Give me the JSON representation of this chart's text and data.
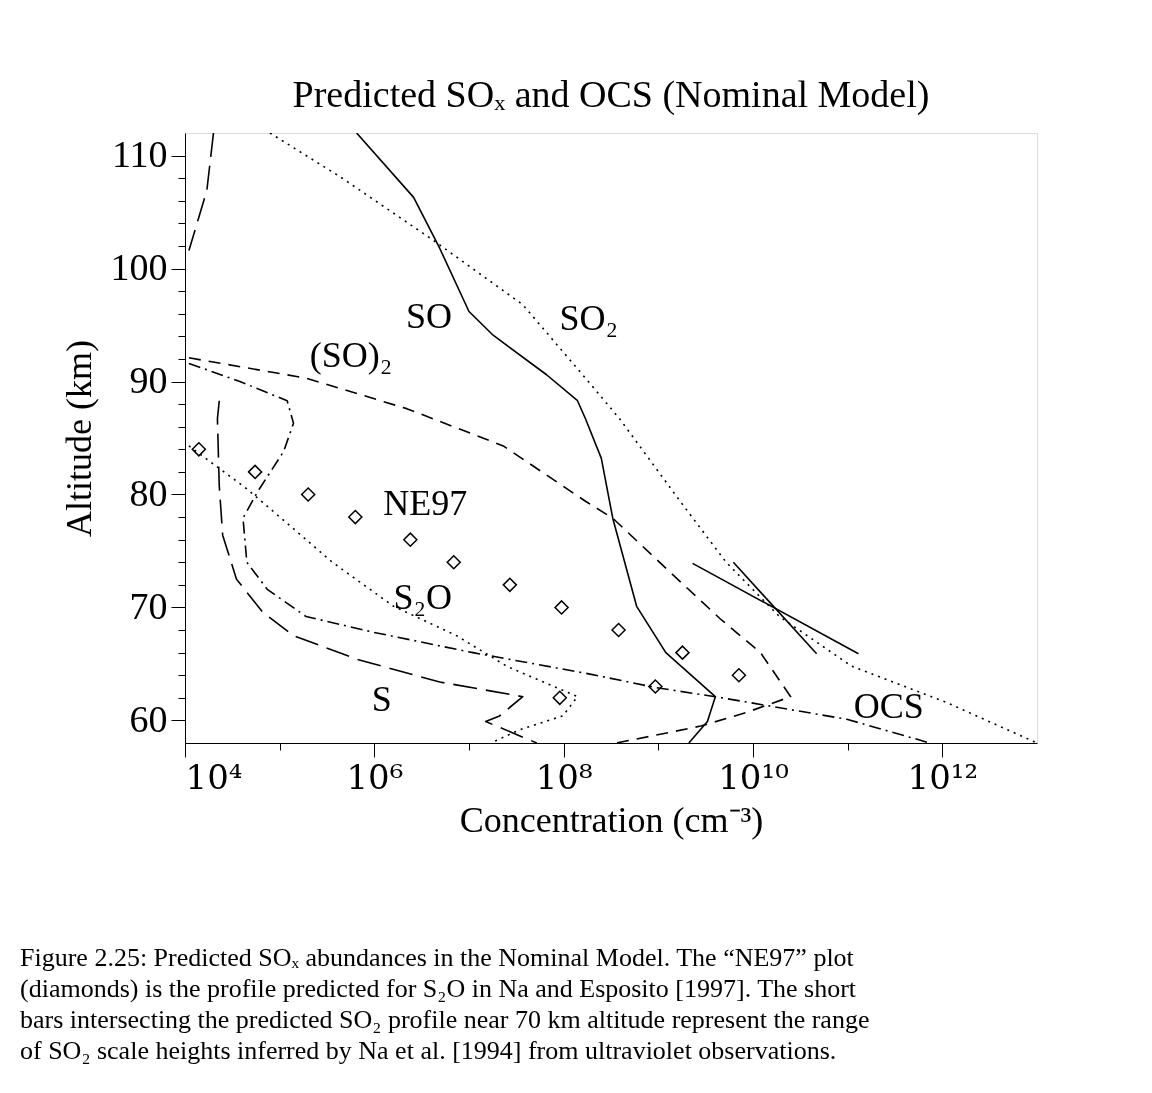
{
  "chart_data": {
    "type": "line",
    "title": "Predicted SOₓ and OCS (Nominal Model)",
    "xlabel": "Concentration (cm⁻³)",
    "ylabel": "Altitude (km)",
    "log": "x",
    "grid": false,
    "xlim": [
      10000,
      10000000000000
    ],
    "xticks": [
      {
        "value": 10000,
        "label": "10⁴"
      },
      {
        "value": 100000,
        "label": null
      },
      {
        "value": 1000000,
        "label": "10⁶"
      },
      {
        "value": 10000000,
        "label": null
      },
      {
        "value": 100000000,
        "label": "10⁸"
      },
      {
        "value": 1000000000,
        "label": null
      },
      {
        "value": 10000000000,
        "label": "10¹⁰"
      },
      {
        "value": 100000000000,
        "label": null
      },
      {
        "value": 1000000000000,
        "label": "10¹²"
      }
    ],
    "ylim": [
      58,
      112
    ],
    "yticks": [
      60,
      {
        "value": 62,
        "label": null
      },
      {
        "value": 64,
        "label": null
      },
      {
        "value": 66,
        "label": null
      },
      {
        "value": 68,
        "label": null
      },
      70,
      {
        "value": 72,
        "label": null
      },
      {
        "value": 74,
        "label": null
      },
      {
        "value": 76,
        "label": null
      },
      {
        "value": 78,
        "label": null
      },
      80,
      {
        "value": 82,
        "label": null
      },
      {
        "value": 84,
        "label": null
      },
      {
        "value": 86,
        "label": null
      },
      {
        "value": 88,
        "label": null
      },
      90,
      {
        "value": 92,
        "label": null
      },
      {
        "value": 94,
        "label": null
      },
      {
        "value": 96,
        "label": null
      },
      {
        "value": 98,
        "label": null
      },
      100,
      {
        "value": 102,
        "label": null
      },
      {
        "value": 104,
        "label": null
      },
      {
        "value": 106,
        "label": null
      },
      {
        "value": 108,
        "label": null
      },
      110
    ],
    "series": [
      {
        "name": "SO",
        "color": "#000000",
        "line_style": "solid",
        "x": [
          650000,
          2600000,
          4900000,
          10000000,
          18000000,
          66000000,
          140000000,
          170000000,
          250000000,
          330000000,
          590000000,
          1200000000,
          4000000000,
          3300000000,
          2100000000
        ],
        "values": [
          112,
          106.3,
          101.8,
          96.2,
          94.1,
          90.6,
          88.3,
          86.7,
          83.2,
          77.9,
          70.1,
          66.0,
          62.1,
          59.9,
          58
        ]
      },
      {
        "name": "SO₂",
        "color": "#000000",
        "line_style": "dotted",
        "x": [
          79000,
          440000,
          4200000,
          37000000,
          170000000,
          390000000,
          1700000000,
          5200000000,
          19000000000,
          110000000000,
          1100000000000,
          10000000000000
        ],
        "values": [
          112,
          108.1,
          102.5,
          96.8,
          90.3,
          86.7,
          79.4,
          74.0,
          69.2,
          64.8,
          61.6,
          58
        ]
      },
      {
        "name": "(SO)₂",
        "color": "#000000",
        "line_style": "dashed",
        "x": [
          11000,
          190000,
          2200000,
          23000000,
          170000000,
          330000000,
          1300000000,
          4500000000,
          12000000000,
          25000000000,
          8500000000,
          2800000000,
          950000000,
          360000000
        ],
        "values": [
          92.1,
          90.3,
          87.6,
          84.3,
          79.4,
          77.9,
          73.2,
          69.0,
          66.0,
          62.1,
          60.7,
          59.5,
          58.7,
          58
        ]
      },
      {
        "name": "S₂O",
        "color": "#000000",
        "line_style": "dotted",
        "x": [
          11000,
          45000,
          130000,
          360000,
          1600000,
          7400000,
          25000000,
          140000000,
          98000000,
          35000000,
          17000000
        ],
        "values": [
          84.3,
          80.5,
          77.2,
          74.0,
          70.1,
          67.5,
          64.8,
          62.1,
          60.4,
          59.2,
          58
        ]
      },
      {
        "name": "NE97",
        "type": "scatter",
        "color": "#000000",
        "marker": "diamond",
        "x": [
          14000,
          55000,
          200000,
          630000,
          2400000,
          6900000,
          27000000,
          95000000,
          380000000,
          1800000000,
          7100000000,
          930000000,
          91000000
        ],
        "values": [
          84,
          82,
          80,
          78,
          76,
          74,
          72,
          70,
          68,
          66,
          64,
          63,
          62
        ]
      },
      {
        "name": "S",
        "color": "#000000",
        "line_style": "longdash",
        "x": [
          20000,
          17000,
          11000,
          null,
          23000,
          22000,
          23000,
          25000,
          35000,
          66000,
          140000,
          660000,
          4900000,
          37000000,
          21000000,
          15000000,
          52000000
        ],
        "values": [
          112,
          106.9,
          101.6,
          null,
          88.3,
          86.7,
          80.8,
          76.4,
          72.5,
          69.6,
          67.5,
          65.4,
          63.4,
          62.1,
          60.4,
          59.9,
          58
        ]
      },
      {
        "name": "OCS",
        "color": "#000000",
        "line_style": "dashdot",
        "x": [
          11000,
          38000,
          120000,
          140000,
          110000,
          58000,
          41000,
          45000,
          74000,
          190000,
          980000,
          11000000,
          190000000,
          950000000,
          4000000000,
          98000000000,
          740000000000
        ],
        "values": [
          91.6,
          90.0,
          88.3,
          86.3,
          83.8,
          80.2,
          77.9,
          74.0,
          71.6,
          69.2,
          67.8,
          66.0,
          64.1,
          62.9,
          62.1,
          60.1,
          58
        ]
      },
      {
        "color": "#000000",
        "line_style": "solid",
        "x": [
          2300000000,
          130000000000
        ],
        "values": [
          73.9,
          65.9
        ]
      },
      {
        "color": "#000000",
        "line_style": "solid",
        "x": [
          6200000000,
          47000000000
        ],
        "values": [
          74.0,
          65.9
        ]
      }
    ],
    "annotations": [
      "Figure 2.25: Predicted SOₓ abundances in the Nominal Model. The “NE97” plot (diamonds) is the profile predicted for S₂O in Na and Esposito [1997]. The short bars intersecting the predicted SO₂ profile near 70 km altitude represent the range of SO₂ scale heights inferred by Na et al. [1994] from ultraviolet observations."
    ]
  }
}
